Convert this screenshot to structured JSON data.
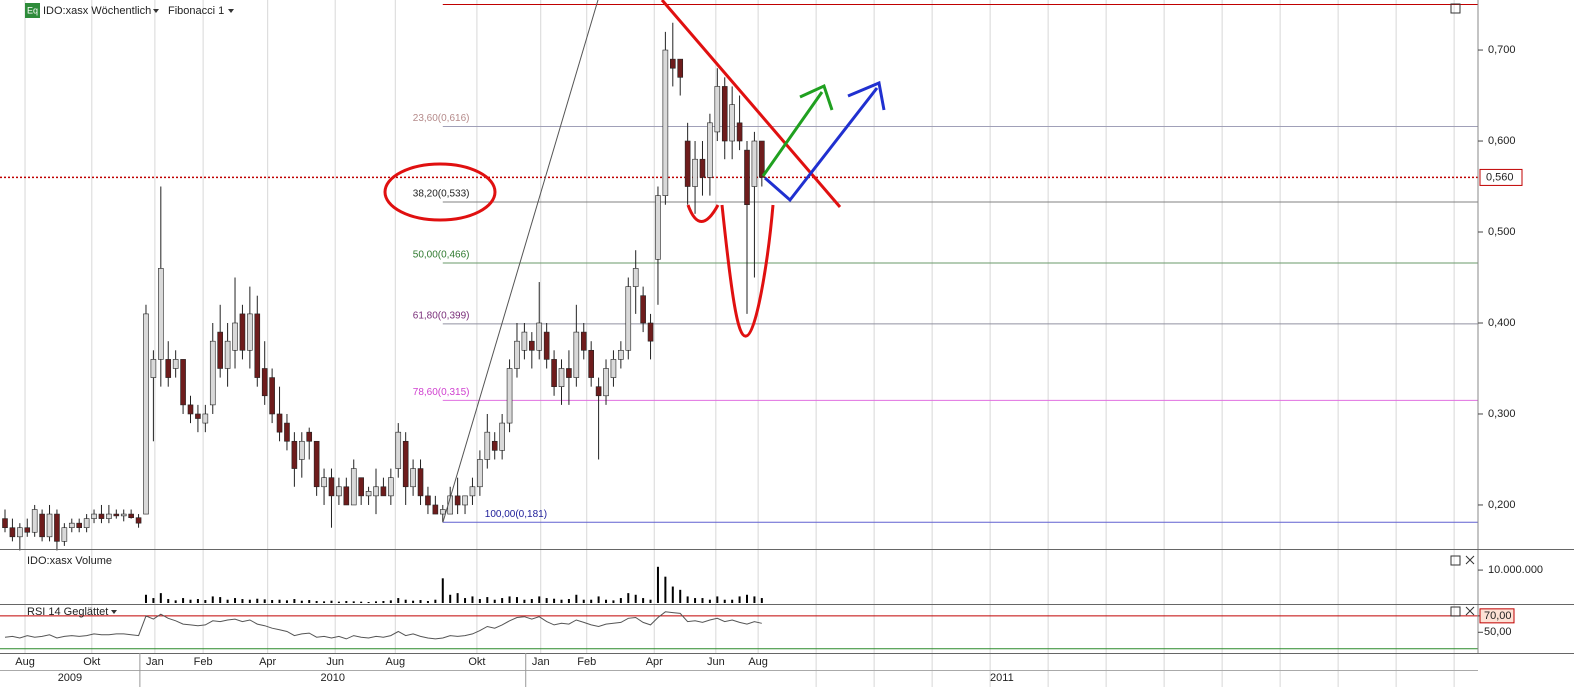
{
  "chart_data": [
    {
      "type": "candlestick",
      "title": "IDO:xasx Wöchentlich",
      "badge": "Eq",
      "indicator": "Fibonacci 1",
      "ylim": [
        0.1527,
        0.755
      ],
      "yticks": [
        {
          "value": 0.2,
          "label": "0,200"
        },
        {
          "value": 0.3,
          "label": "0,300"
        },
        {
          "value": 0.4,
          "label": "0,400"
        },
        {
          "value": 0.5,
          "label": "0,500"
        },
        {
          "value": 0.6,
          "label": "0,600"
        },
        {
          "value": 0.7,
          "label": "0,700"
        }
      ],
      "xticks": [
        {
          "value": 2.7,
          "label": "Aug"
        },
        {
          "value": 11.7,
          "label": "Okt"
        },
        {
          "value": 20.2,
          "label": "Jan"
        },
        {
          "value": 26.7,
          "label": "Feb"
        },
        {
          "value": 35.4,
          "label": "Apr"
        },
        {
          "value": 44.5,
          "label": "Jun"
        },
        {
          "value": 52.6,
          "label": "Aug"
        },
        {
          "value": 63.6,
          "label": "Okt"
        },
        {
          "value": 72.2,
          "label": "Jan"
        },
        {
          "value": 78.4,
          "label": "Feb"
        },
        {
          "value": 87.5,
          "label": "Apr"
        },
        {
          "value": 95.8,
          "label": "Jun"
        },
        {
          "value": 101.5,
          "label": "Aug"
        }
      ],
      "years": [
        "2009",
        "2010",
        "2011"
      ],
      "grid": "x",
      "up_color": "#d9d9d9",
      "down_color": "#6e1c1c",
      "last_price": {
        "value": 0.56,
        "label": "0,560"
      },
      "last_price_color": "#c00000",
      "high_line": 0.75,
      "fib_start": 59,
      "fib": [
        {
          "label": "23,60(0,616)",
          "value": 0.616,
          "color": "#b58a8a",
          "line": "#a0a0b8"
        },
        {
          "label": "38,20(0,533)",
          "value": 0.533,
          "color": "#222222",
          "line": "#808080"
        },
        {
          "label": "50,00(0,466)",
          "value": 0.466,
          "color": "#2f7a2f",
          "line": "#6a9a6a"
        },
        {
          "label": "61,80(0,399)",
          "value": 0.399,
          "color": "#7a2f7a",
          "line": "#9090a0"
        },
        {
          "label": "78,60(0,315)",
          "value": 0.315,
          "color": "#d040d0",
          "line": "#e070e0"
        },
        {
          "label": "100,00(0,181)",
          "value": 0.181,
          "color": "#20209a",
          "line": "#6060d0"
        }
      ],
      "open": [
        0.185,
        0.175,
        0.165,
        0.175,
        0.17,
        0.19,
        0.165,
        0.19,
        0.16,
        0.175,
        0.18,
        0.175,
        0.185,
        0.19,
        0.185,
        0.19,
        0.188,
        0.19,
        0.186,
        0.19,
        0.34,
        0.36,
        0.36,
        0.35,
        0.36,
        0.31,
        0.3,
        0.29,
        0.31,
        0.39,
        0.35,
        0.37,
        0.41,
        0.37,
        0.41,
        0.35,
        0.34,
        0.3,
        0.29,
        0.27,
        0.25,
        0.28,
        0.27,
        0.22,
        0.23,
        0.21,
        0.22,
        0.2,
        0.23,
        0.21,
        0.21,
        0.22,
        0.21,
        0.24,
        0.27,
        0.22,
        0.24,
        0.21,
        0.2,
        0.19,
        0.19,
        0.21,
        0.2,
        0.21,
        0.22,
        0.25,
        0.27,
        0.26,
        0.29,
        0.35,
        0.37,
        0.38,
        0.37,
        0.39,
        0.36,
        0.33,
        0.35,
        0.34,
        0.39,
        0.37,
        0.33,
        0.32,
        0.34,
        0.36,
        0.37,
        0.44,
        0.43,
        0.4,
        0.47,
        0.54,
        0.69,
        0.69,
        0.6,
        0.55,
        0.58,
        0.56,
        0.61,
        0.66,
        0.6,
        0.62,
        0.59,
        0.55,
        0.6
      ],
      "high": [
        0.195,
        0.185,
        0.18,
        0.185,
        0.2,
        0.195,
        0.2,
        0.195,
        0.18,
        0.185,
        0.185,
        0.19,
        0.195,
        0.2,
        0.2,
        0.195,
        0.195,
        0.195,
        0.19,
        0.42,
        0.37,
        0.55,
        0.38,
        0.37,
        0.36,
        0.32,
        0.31,
        0.31,
        0.4,
        0.42,
        0.4,
        0.45,
        0.42,
        0.44,
        0.43,
        0.38,
        0.35,
        0.33,
        0.3,
        0.28,
        0.28,
        0.285,
        0.27,
        0.24,
        0.24,
        0.23,
        0.23,
        0.25,
        0.23,
        0.22,
        0.24,
        0.23,
        0.24,
        0.29,
        0.28,
        0.25,
        0.25,
        0.22,
        0.21,
        0.2,
        0.22,
        0.23,
        0.21,
        0.23,
        0.26,
        0.3,
        0.28,
        0.3,
        0.36,
        0.4,
        0.4,
        0.39,
        0.445,
        0.4,
        0.37,
        0.36,
        0.37,
        0.42,
        0.4,
        0.38,
        0.34,
        0.36,
        0.37,
        0.38,
        0.45,
        0.48,
        0.44,
        0.41,
        0.55,
        0.72,
        0.73,
        0.69,
        0.62,
        0.6,
        0.6,
        0.63,
        0.68,
        0.67,
        0.66,
        0.65,
        0.6,
        0.61,
        0.6
      ],
      "low": [
        0.17,
        0.16,
        0.15,
        0.165,
        0.165,
        0.16,
        0.16,
        0.15,
        0.155,
        0.17,
        0.17,
        0.17,
        0.18,
        0.18,
        0.18,
        0.185,
        0.182,
        0.185,
        0.175,
        0.19,
        0.27,
        0.33,
        0.33,
        0.34,
        0.3,
        0.29,
        0.28,
        0.28,
        0.3,
        0.34,
        0.33,
        0.35,
        0.36,
        0.35,
        0.33,
        0.31,
        0.29,
        0.27,
        0.26,
        0.22,
        0.23,
        0.25,
        0.21,
        0.2,
        0.175,
        0.2,
        0.2,
        0.2,
        0.2,
        0.2,
        0.19,
        0.21,
        0.2,
        0.23,
        0.2,
        0.21,
        0.2,
        0.19,
        0.19,
        0.181,
        0.19,
        0.19,
        0.19,
        0.2,
        0.21,
        0.24,
        0.25,
        0.25,
        0.28,
        0.34,
        0.36,
        0.35,
        0.36,
        0.35,
        0.32,
        0.31,
        0.31,
        0.33,
        0.36,
        0.33,
        0.25,
        0.31,
        0.33,
        0.35,
        0.36,
        0.41,
        0.39,
        0.36,
        0.42,
        0.53,
        0.66,
        0.65,
        0.53,
        0.52,
        0.54,
        0.54,
        0.6,
        0.58,
        0.58,
        0.59,
        0.41,
        0.45,
        0.55
      ],
      "close": [
        0.175,
        0.165,
        0.175,
        0.17,
        0.195,
        0.165,
        0.19,
        0.16,
        0.175,
        0.18,
        0.175,
        0.185,
        0.19,
        0.185,
        0.19,
        0.188,
        0.19,
        0.186,
        0.18,
        0.41,
        0.36,
        0.46,
        0.34,
        0.36,
        0.31,
        0.3,
        0.295,
        0.3,
        0.38,
        0.35,
        0.38,
        0.4,
        0.37,
        0.41,
        0.34,
        0.32,
        0.3,
        0.28,
        0.27,
        0.24,
        0.27,
        0.27,
        0.22,
        0.23,
        0.21,
        0.22,
        0.2,
        0.24,
        0.21,
        0.215,
        0.22,
        0.21,
        0.23,
        0.28,
        0.22,
        0.24,
        0.21,
        0.2,
        0.19,
        0.195,
        0.21,
        0.2,
        0.21,
        0.22,
        0.25,
        0.28,
        0.26,
        0.29,
        0.35,
        0.38,
        0.39,
        0.37,
        0.4,
        0.36,
        0.33,
        0.35,
        0.34,
        0.39,
        0.37,
        0.34,
        0.32,
        0.35,
        0.36,
        0.37,
        0.44,
        0.46,
        0.4,
        0.38,
        0.54,
        0.7,
        0.68,
        0.67,
        0.55,
        0.58,
        0.56,
        0.62,
        0.66,
        0.6,
        0.64,
        0.6,
        0.53,
        0.6,
        0.56
      ]
    },
    {
      "type": "bar",
      "title": "IDO:xasx Volume",
      "color": "#000000",
      "ylim": [
        0,
        15800000
      ],
      "yticks": [
        {
          "value": 10000000,
          "label": "10.000.000"
        }
      ],
      "values": [
        0,
        0,
        0,
        0,
        0,
        0,
        0,
        0,
        0,
        0,
        0,
        0,
        0,
        0,
        0,
        0,
        0,
        0,
        0,
        2500000,
        1500000,
        3000000,
        1200000,
        800000,
        1500000,
        1000000,
        1200000,
        900000,
        2000000,
        1800000,
        1000000,
        1500000,
        1200000,
        1000000,
        1300000,
        1100000,
        900000,
        1000000,
        800000,
        1200000,
        700000,
        900000,
        600000,
        500000,
        700000,
        400000,
        600000,
        500000,
        400000,
        300000,
        500000,
        600000,
        800000,
        1500000,
        1000000,
        700000,
        900000,
        600000,
        1000000,
        7500000,
        2500000,
        3000000,
        1500000,
        2000000,
        1200000,
        1800000,
        1000000,
        1500000,
        2000000,
        1800000,
        1000000,
        1200000,
        2000000,
        1500000,
        1300000,
        1000000,
        1200000,
        2500000,
        1000000,
        1000000,
        2000000,
        1000000,
        800000,
        1500000,
        3000000,
        2500000,
        1500000,
        1000000,
        11000000,
        8000000,
        5000000,
        4000000,
        2000000,
        1500000,
        1500000,
        1000000,
        2000000,
        1000000,
        1000000,
        2000000,
        2500000,
        2000000,
        1500000
      ]
    },
    {
      "type": "line",
      "title": "RSI 14 Geglättet",
      "color": "#555555",
      "ylim": [
        26,
        82
      ],
      "yticks": [
        {
          "value": 70,
          "label": "70,00"
        },
        {
          "value": 50,
          "label": "50,00"
        }
      ],
      "levels": [
        {
          "value": 70,
          "color": "#c00000"
        },
        {
          "value": 30,
          "color": "#2a8a2a"
        }
      ],
      "values": [
        44,
        45,
        43,
        46,
        44,
        45,
        47,
        43,
        45,
        46,
        45,
        46,
        48,
        47,
        47,
        48,
        48,
        47,
        46,
        70,
        66,
        72,
        67,
        64,
        60,
        59,
        58,
        59,
        64,
        63,
        65,
        66,
        63,
        65,
        60,
        58,
        55,
        53,
        51,
        46,
        48,
        49,
        44,
        45,
        43,
        45,
        42,
        46,
        44,
        43,
        45,
        44,
        46,
        51,
        46,
        48,
        45,
        43,
        42,
        43,
        46,
        45,
        46,
        48,
        52,
        57,
        55,
        59,
        64,
        68,
        69,
        66,
        69,
        63,
        59,
        61,
        60,
        65,
        62,
        59,
        57,
        60,
        61,
        62,
        67,
        68,
        62,
        59,
        68,
        75,
        74,
        73,
        63,
        64,
        62,
        65,
        67,
        63,
        65,
        62,
        60,
        63,
        61
      ]
    }
  ]
}
